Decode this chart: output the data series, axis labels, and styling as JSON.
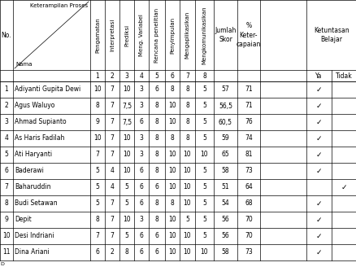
{
  "students": [
    {
      "no": 1,
      "nama": "Adiyanti Gupita Dewi",
      "scores": [
        10,
        7,
        10,
        3,
        6,
        8,
        8,
        5
      ],
      "jumlah": "57",
      "pct": "71",
      "ya": true,
      "tidak": false
    },
    {
      "no": 2,
      "nama": "Agus Waluyo",
      "scores": [
        8,
        7,
        "7,5",
        3,
        8,
        10,
        8,
        5
      ],
      "jumlah": "56,5",
      "pct": "71",
      "ya": true,
      "tidak": false
    },
    {
      "no": 3,
      "nama": "Ahmad Supianto",
      "scores": [
        9,
        7,
        "7,5",
        6,
        8,
        10,
        8,
        5
      ],
      "jumlah": "60,5",
      "pct": "76",
      "ya": true,
      "tidak": false
    },
    {
      "no": 4,
      "nama": "As Haris Fadilah",
      "scores": [
        10,
        7,
        10,
        3,
        8,
        8,
        8,
        5
      ],
      "jumlah": "59",
      "pct": "74",
      "ya": true,
      "tidak": false
    },
    {
      "no": 5,
      "nama": "Ati Haryanti",
      "scores": [
        7,
        7,
        10,
        3,
        8,
        10,
        10,
        10
      ],
      "jumlah": "65",
      "pct": "81",
      "ya": true,
      "tidak": false
    },
    {
      "no": 6,
      "nama": "Baderawi",
      "scores": [
        5,
        4,
        10,
        6,
        8,
        10,
        10,
        5
      ],
      "jumlah": "58",
      "pct": "73",
      "ya": true,
      "tidak": false
    },
    {
      "no": 7,
      "nama": "Baharuddin",
      "scores": [
        5,
        4,
        5,
        6,
        6,
        10,
        10,
        5
      ],
      "jumlah": "51",
      "pct": "64",
      "ya": false,
      "tidak": true
    },
    {
      "no": 8,
      "nama": "Budi Setawan",
      "scores": [
        5,
        7,
        5,
        6,
        8,
        8,
        10,
        5
      ],
      "jumlah": "54",
      "pct": "68",
      "ya": true,
      "tidak": false
    },
    {
      "no": 9,
      "nama": "Depit",
      "scores": [
        8,
        7,
        10,
        3,
        8,
        10,
        5,
        5
      ],
      "jumlah": "56",
      "pct": "70",
      "ya": true,
      "tidak": false
    },
    {
      "no": 10,
      "nama": "Desi Indriani",
      "scores": [
        7,
        7,
        5,
        6,
        6,
        10,
        10,
        5
      ],
      "jumlah": "56",
      "pct": "70",
      "ya": true,
      "tidak": false
    },
    {
      "no": 11,
      "nama": "Dina Ariani",
      "scores": [
        6,
        2,
        8,
        6,
        6,
        10,
        10,
        10
      ],
      "jumlah": "58",
      "pct": "73",
      "ya": true,
      "tidak": false
    }
  ],
  "score_headers": [
    "Pengamatan",
    "Interpretasi",
    "Prediksi",
    "Meng. Variabel",
    "Rencana penelitian",
    "Penyimpulan",
    "Mengaplikasikan",
    "Mengkomunikasikan"
  ],
  "bg_color": "#ffffff",
  "line_color": "#000000",
  "fontsize": 5.5,
  "checkmark": "✓"
}
